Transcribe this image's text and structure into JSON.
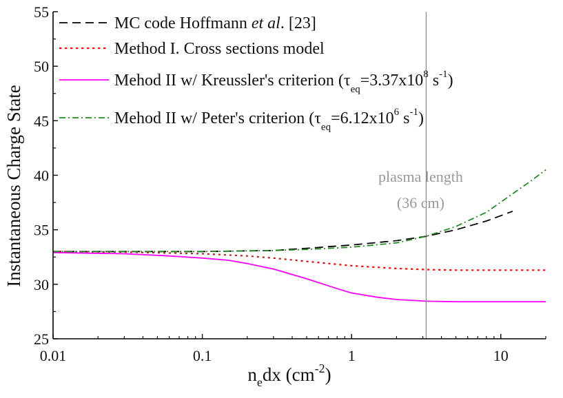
{
  "chart_data": {
    "type": "line",
    "xlabel": "n_e dx (cm^-2)",
    "ylabel": "Instantaneous Charge State",
    "xscale": "log",
    "xlim": [
      0.01,
      20
    ],
    "ylim": [
      25,
      55
    ],
    "xticks": [
      {
        "value": 0.01,
        "label": "0.01"
      },
      {
        "value": 0.1,
        "label": "0.1"
      },
      {
        "value": 1,
        "label": "1"
      },
      {
        "value": 10,
        "label": "10"
      }
    ],
    "yticks": [
      25,
      30,
      35,
      40,
      45,
      50,
      55
    ],
    "legend_position": "top-left",
    "series": [
      {
        "name": "MC code Hoffmann et al. [23]",
        "color": "#000000",
        "dash": "dashed",
        "x": [
          0.01,
          0.03,
          0.1,
          0.3,
          0.5,
          1,
          2,
          3.16,
          5,
          8,
          12
        ],
        "y": [
          33.0,
          33.0,
          33.0,
          33.1,
          33.3,
          33.6,
          34.0,
          34.4,
          35.0,
          35.8,
          36.7
        ]
      },
      {
        "name": "Method I. Cross sections model",
        "color": "#ff0000",
        "dash": "dotted",
        "x": [
          0.01,
          0.03,
          0.1,
          0.2,
          0.3,
          0.5,
          1,
          2,
          3.16,
          5,
          10,
          20
        ],
        "y": [
          33.0,
          32.95,
          32.8,
          32.6,
          32.4,
          32.1,
          31.7,
          31.45,
          31.35,
          31.3,
          31.3,
          31.3
        ]
      },
      {
        "name": "Mehod II w/ Kreussler's criterion",
        "color": "#ff00ff",
        "dash": "solid",
        "x": [
          0.01,
          0.03,
          0.06,
          0.1,
          0.15,
          0.2,
          0.3,
          0.5,
          0.8,
          1,
          1.5,
          2,
          3.16,
          5,
          10,
          20
        ],
        "y": [
          32.9,
          32.8,
          32.6,
          32.4,
          32.2,
          31.9,
          31.4,
          30.5,
          29.6,
          29.2,
          28.8,
          28.6,
          28.45,
          28.4,
          28.4,
          28.4
        ]
      },
      {
        "name": "Mehod II w/ Peter's criterion",
        "color": "#228b22",
        "dash": "dashdot",
        "x": [
          0.01,
          0.03,
          0.1,
          0.3,
          0.5,
          1,
          2,
          3.16,
          5,
          8,
          12,
          16,
          20
        ],
        "y": [
          33.0,
          33.0,
          33.0,
          33.1,
          33.2,
          33.4,
          33.8,
          34.4,
          35.3,
          36.6,
          38.3,
          39.5,
          40.5
        ]
      }
    ],
    "vertical_line": {
      "x": 3.16,
      "color": "#888888"
    },
    "annotation": {
      "line1": "plasma length",
      "line2": "(36 cm)",
      "color": "#999999"
    }
  },
  "axes": {
    "xlabel_main": "n",
    "xlabel_sub": "e",
    "xlabel_rest": "dx (cm",
    "xlabel_sup": "-2",
    "xlabel_close": ")",
    "ylabel": "Instantaneous Charge State"
  },
  "legend": [
    {
      "parts": [
        {
          "t": "MC code Hoffmann "
        },
        {
          "t": "et al",
          "italic": true
        },
        {
          "t": ". [23]"
        }
      ]
    },
    {
      "parts": [
        {
          "t": "Method I. Cross sections model"
        }
      ]
    },
    {
      "parts": [
        {
          "t": "Mehod II w/ Kreussler's criterion ("
        },
        {
          "t": "τ"
        },
        {
          "t": "eq",
          "sub": true
        },
        {
          "t": "=3.37x10"
        },
        {
          "t": "8",
          "sup": true
        },
        {
          "t": " s"
        },
        {
          "t": "-1",
          "sup": true
        },
        {
          "t": ")"
        }
      ]
    },
    {
      "parts": [
        {
          "t": "Mehod II w/ Peter's criterion ("
        },
        {
          "t": "τ"
        },
        {
          "t": "eq",
          "sub": true
        },
        {
          "t": "=6.12x10"
        },
        {
          "t": "6",
          "sup": true
        },
        {
          "t": " s"
        },
        {
          "t": "-1",
          "sup": true
        },
        {
          "t": ")"
        }
      ]
    }
  ]
}
